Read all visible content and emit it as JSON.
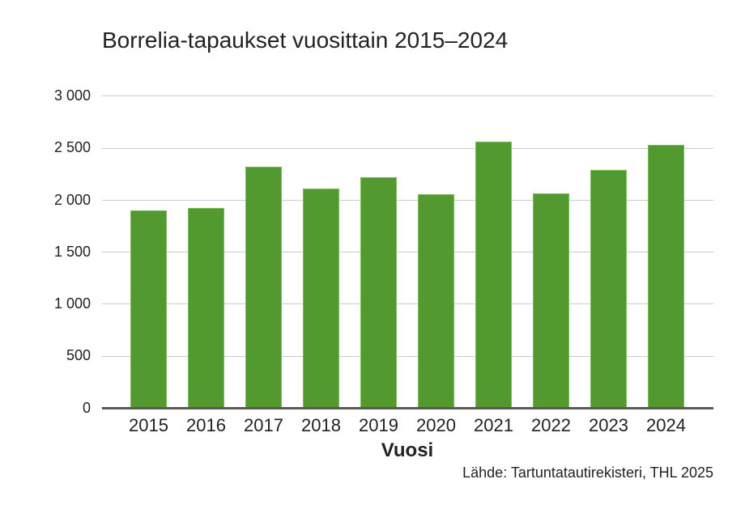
{
  "chart_data": {
    "type": "bar",
    "title": "Borrelia-tapaukset vuosittain 2015–2024",
    "xlabel": "Vuosi",
    "ylabel": "",
    "source": "Lähde: Tartuntatautirekisteri, THL 2025",
    "categories": [
      "2015",
      "2016",
      "2017",
      "2018",
      "2019",
      "2020",
      "2021",
      "2022",
      "2023",
      "2024"
    ],
    "values": [
      1905,
      1925,
      2320,
      2110,
      2220,
      2055,
      2565,
      2070,
      2290,
      2530
    ],
    "ylim": [
      0,
      3000
    ],
    "yticks": [
      0,
      500,
      1000,
      1500,
      2000,
      2500,
      3000
    ],
    "ytick_labels": [
      "0",
      "500",
      "1 000",
      "1 500",
      "2 000",
      "2 500",
      "3 000"
    ],
    "grid": true,
    "legend": null,
    "bar_color": "#529a2f"
  }
}
